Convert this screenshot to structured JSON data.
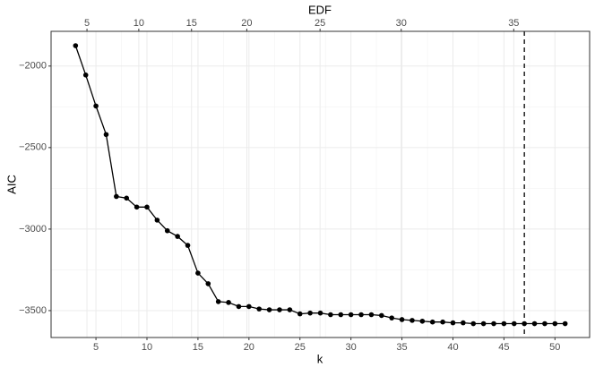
{
  "chart_data": {
    "type": "line",
    "x_label": "k",
    "y_label": "AIC",
    "x2_label": "EDF",
    "x": [
      3,
      4,
      5,
      6,
      7,
      8,
      9,
      10,
      11,
      12,
      13,
      14,
      15,
      16,
      17,
      18,
      19,
      20,
      21,
      22,
      23,
      24,
      25,
      26,
      27,
      28,
      29,
      30,
      31,
      32,
      33,
      34,
      35,
      36,
      37,
      38,
      39,
      40,
      41,
      42,
      43,
      44,
      45,
      46,
      47,
      48,
      49,
      50,
      51
    ],
    "series": [
      {
        "color": "#000000",
        "values": [
          -1875,
          -2055,
          -2245,
          -2420,
          -2800,
          -2810,
          -2865,
          -2865,
          -2945,
          -3010,
          -3045,
          -3100,
          -3270,
          -3335,
          -3445,
          -3450,
          -3475,
          -3475,
          -3490,
          -3495,
          -3495,
          -3495,
          -3520,
          -3515,
          -3515,
          -3525,
          -3525,
          -3525,
          -3525,
          -3525,
          -3530,
          -3545,
          -3555,
          -3560,
          -3565,
          -3570,
          -3570,
          -3575,
          -3575,
          -3580,
          -3580,
          -3580,
          -3580,
          -3580,
          -3580,
          -3580,
          -3580,
          -3580,
          -3580
        ]
      }
    ],
    "xlim": [
      0.6,
      53.4
    ],
    "ylim": [
      -1787,
      -3665
    ],
    "xticks": [
      5,
      10,
      15,
      20,
      25,
      30,
      35,
      40,
      45,
      50
    ],
    "yticks": [
      {
        "value": -2000,
        "label": "−2000"
      },
      {
        "value": -2500,
        "label": "−2500"
      },
      {
        "value": -3000,
        "label": "−3000"
      },
      {
        "value": -3500,
        "label": "−3500"
      }
    ],
    "x2ticks": [
      {
        "value": 4.12,
        "label": "5"
      },
      {
        "value": 9.2,
        "label": "10"
      },
      {
        "value": 14.37,
        "label": "15"
      },
      {
        "value": 19.79,
        "label": "20"
      },
      {
        "value": 26.97,
        "label": "25"
      },
      {
        "value": 34.93,
        "label": "30"
      },
      {
        "value": 45.96,
        "label": "35"
      }
    ],
    "vline": 47,
    "grid": true
  }
}
